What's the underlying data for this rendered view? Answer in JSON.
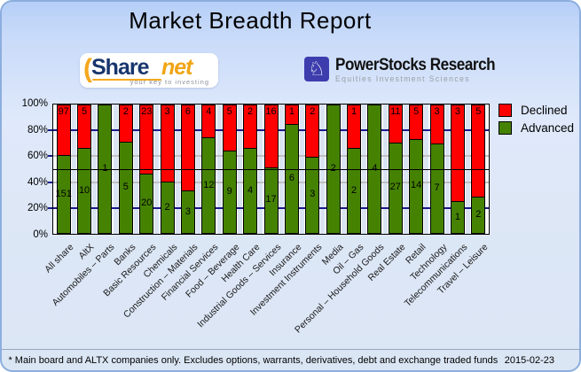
{
  "title": "Market Breadth Report",
  "logos": {
    "sharenet": {
      "paren": "(",
      "name_part1": "Share",
      "name_part2": "net",
      "tagline": "your key to investing"
    },
    "powerstocks": {
      "knight_icon": "♘",
      "name": "PowerStocks  Research",
      "subtitle": "Equities Investment Sciences"
    }
  },
  "legend": [
    {
      "label": "Declined",
      "color": "#ff0000"
    },
    {
      "label": "Advanced",
      "color": "#458202"
    }
  ],
  "footer": {
    "note": "* Main board and ALTX companies only. Excludes options, warrants, derivatives, debt and exchange traded funds",
    "date": "2015-02-23"
  },
  "colors": {
    "declined": "#ff0000",
    "advanced": "#458202",
    "grid_major": "#1a1a8c",
    "grid_minor": "#c0c0c0",
    "midline": "#000000",
    "plot_bg": "#ffffff",
    "gap_strip": "#d9e3f2"
  },
  "chart_data": {
    "type": "bar",
    "stacked": true,
    "title": "Market Breadth Report",
    "xlabel": "",
    "ylabel": "",
    "ylim": [
      0,
      100
    ],
    "yticks": [
      "100%",
      "80%",
      "60%",
      "40%",
      "20%",
      "0%"
    ],
    "grid": "major 20/80 navy, minor 40/60 gray, reference line at 50%",
    "legend_position": "top-right",
    "value_format": "segment labels are company counts; bar heights are percent of total",
    "categories": [
      "All share",
      "AltX",
      "Automobiles - Parts",
      "Banks",
      "Basic Resources",
      "Chemicals",
      "Construction - Materials",
      "Financial Services",
      "Food - Beverage",
      "Health Care",
      "Industrial Goods - Services",
      "Insurance",
      "Investment Instruments",
      "Media",
      "Oil - Gas",
      "Personal - Household Goods",
      "Real Estate",
      "Retail",
      "Technology",
      "Telecommunications",
      "Travel - Leisure"
    ],
    "series": [
      {
        "name": "Declined",
        "color": "#ff0000",
        "values": [
          97,
          5,
          0,
          2,
          23,
          3,
          6,
          4,
          5,
          2,
          16,
          1,
          2,
          0,
          1,
          0,
          11,
          5,
          3,
          3,
          5
        ]
      },
      {
        "name": "Advanced",
        "color": "#458202",
        "values": [
          151,
          10,
          1,
          5,
          20,
          2,
          3,
          12,
          9,
          4,
          17,
          6,
          3,
          2,
          2,
          4,
          27,
          14,
          7,
          1,
          2
        ]
      }
    ]
  }
}
